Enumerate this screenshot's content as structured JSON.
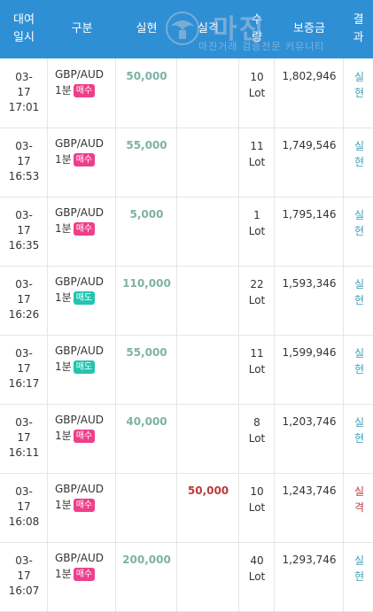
{
  "header": {
    "date": "대여\n일시",
    "type": "구분",
    "win": "실현",
    "loss": "실격",
    "qty": "수\n량",
    "balance": "보증금",
    "result": "결\n과"
  },
  "watermark": {
    "title": "마진",
    "subtitle": "마진거래 검증전문 커뮤니티"
  },
  "colors": {
    "header_bg": "#2f8fd5",
    "buy": "#ee3f8b",
    "sell": "#23c4b0",
    "win": "#7fb1a6",
    "loss": "#c0393b"
  },
  "rows": [
    {
      "date": "03-\n17\n17:01",
      "symbol": "GBP/AUD",
      "period": "1분",
      "side": "매수",
      "side_type": "buy",
      "win": "50,000",
      "loss": "",
      "lot": "10\nLot",
      "balance": "1,802,946",
      "result": "실\n현",
      "result_type": "w"
    },
    {
      "date": "03-\n17\n16:53",
      "symbol": "GBP/AUD",
      "period": "1분",
      "side": "매수",
      "side_type": "buy",
      "win": "55,000",
      "loss": "",
      "lot": "11\nLot",
      "balance": "1,749,546",
      "result": "실\n현",
      "result_type": "w"
    },
    {
      "date": "03-\n17\n16:35",
      "symbol": "GBP/AUD",
      "period": "1분",
      "side": "매수",
      "side_type": "buy",
      "win": "5,000",
      "loss": "",
      "lot": "1\nLot",
      "balance": "1,795,146",
      "result": "실\n현",
      "result_type": "w"
    },
    {
      "date": "03-\n17\n16:26",
      "symbol": "GBP/AUD",
      "period": "1분",
      "side": "매도",
      "side_type": "sell",
      "win": "110,000",
      "loss": "",
      "lot": "22\nLot",
      "balance": "1,593,346",
      "result": "실\n현",
      "result_type": "w"
    },
    {
      "date": "03-\n17\n16:17",
      "symbol": "GBP/AUD",
      "period": "1분",
      "side": "매도",
      "side_type": "sell",
      "win": "55,000",
      "loss": "",
      "lot": "11\nLot",
      "balance": "1,599,946",
      "result": "실\n현",
      "result_type": "w"
    },
    {
      "date": "03-\n17\n16:11",
      "symbol": "GBP/AUD",
      "period": "1분",
      "side": "매수",
      "side_type": "buy",
      "win": "40,000",
      "loss": "",
      "lot": "8\nLot",
      "balance": "1,203,746",
      "result": "실\n현",
      "result_type": "w"
    },
    {
      "date": "03-\n17\n16:08",
      "symbol": "GBP/AUD",
      "period": "1분",
      "side": "매수",
      "side_type": "buy",
      "win": "",
      "loss": "50,000",
      "lot": "10\nLot",
      "balance": "1,243,746",
      "result": "실\n격",
      "result_type": "l"
    },
    {
      "date": "03-\n17\n16:07",
      "symbol": "GBP/AUD",
      "period": "1분",
      "side": "매수",
      "side_type": "buy",
      "win": "200,000",
      "loss": "",
      "lot": "40\nLot",
      "balance": "1,293,746",
      "result": "실\n현",
      "result_type": "w"
    }
  ]
}
